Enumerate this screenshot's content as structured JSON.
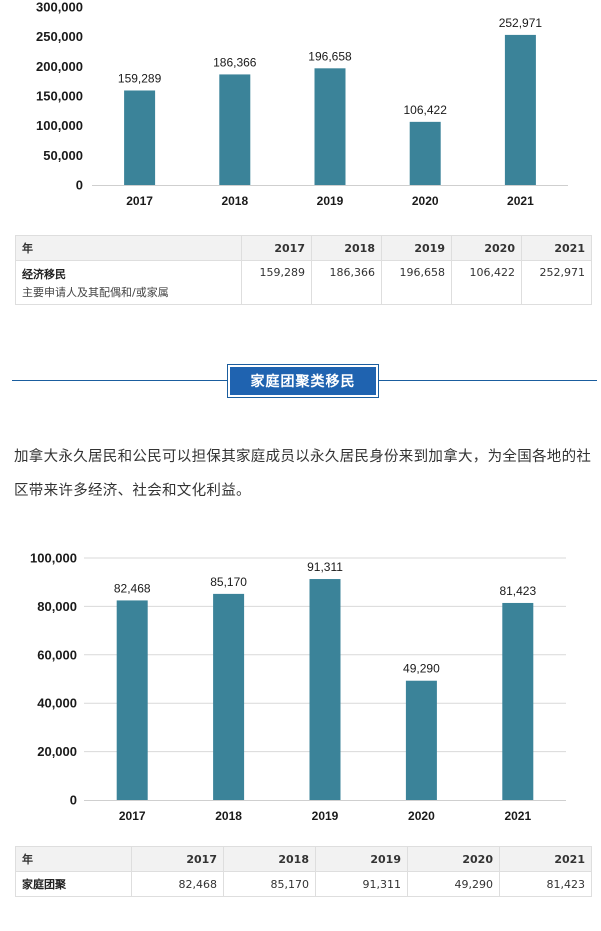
{
  "chart_data": [
    {
      "type": "bar",
      "categories": [
        "2017",
        "2018",
        "2019",
        "2020",
        "2021"
      ],
      "values": [
        159289,
        186366,
        196658,
        106422,
        252971
      ],
      "value_labels": [
        "159,289",
        "186,366",
        "196,658",
        "106,422",
        "252,971"
      ],
      "yticks": [
        "0",
        "50,000",
        "100,000",
        "150,000",
        "200,000",
        "250,000",
        "300,000"
      ],
      "ylim": [
        0,
        300000
      ],
      "grid": false,
      "bar_color": "#3b8399"
    },
    {
      "type": "bar",
      "categories": [
        "2017",
        "2018",
        "2019",
        "2020",
        "2021"
      ],
      "values": [
        82468,
        85170,
        91311,
        49290,
        81423
      ],
      "value_labels": [
        "82,468",
        "85,170",
        "91,311",
        "49,290",
        "81,423"
      ],
      "yticks": [
        "0",
        "20,000",
        "40,000",
        "60,000",
        "80,000",
        "100,000"
      ],
      "ylim": [
        0,
        100000
      ],
      "grid": true,
      "bar_color": "#3b8399"
    }
  ],
  "table1": {
    "header": [
      "年",
      "2017",
      "2018",
      "2019",
      "2020",
      "2021"
    ],
    "row_title": "经济移民",
    "row_subtitle": "主要申请人及其配偶和/或家属",
    "values": [
      "159,289",
      "186,366",
      "196,658",
      "106,422",
      "252,971"
    ]
  },
  "section": {
    "title": "家庭团聚类移民",
    "accent": "#1f63b0"
  },
  "intro_text": "加拿大永久居民和公民可以担保其家庭成员以永久居民身份来到加拿大，为全国各地的社区带来许多经济、社会和文化利益。",
  "table2": {
    "header": [
      "年",
      "2017",
      "2018",
      "2019",
      "2020",
      "2021"
    ],
    "row_title": "家庭团聚",
    "values": [
      "82,468",
      "85,170",
      "91,311",
      "49,290",
      "81,423"
    ]
  }
}
